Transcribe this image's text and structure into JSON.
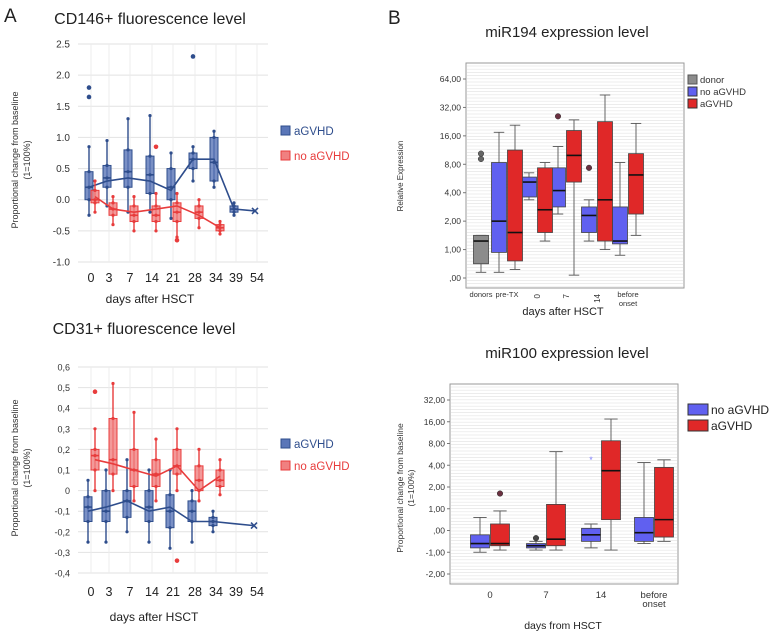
{
  "figure": {
    "panel_a_letter": "A",
    "panel_b_letter": "B",
    "colors": {
      "agvhd": "#2e4d8c",
      "agvhd_fill": "#5a76b8",
      "no_agvhd_red": "#e83c3c",
      "no_agvhd_red_fill": "#f08080",
      "donor": "#8c8c8c",
      "b_blue": "#6060f0",
      "b_red": "#e02828"
    }
  },
  "chart_data": [
    {
      "id": "cd146",
      "type": "box",
      "title": "CD146+ fluorescence level",
      "xlabel": "days after HSCT",
      "ylabel": "Proportional change from baseline (1=100%)",
      "ylabel_lines": [
        "Proportional change from baseline",
        "(1=100%)"
      ],
      "categories": [
        "0",
        "3",
        "7",
        "14",
        "21",
        "28",
        "34",
        "39",
        "54"
      ],
      "ylim": [
        -1.0,
        2.5
      ],
      "yticks": [
        "2.5",
        "2.0",
        "1.5",
        "1.0",
        "0.5",
        "0.0",
        "-0.5",
        "-1.0"
      ],
      "ytick_values": [
        2.5,
        2.0,
        1.5,
        1.0,
        0.5,
        0.0,
        -0.5,
        -1.0
      ],
      "legend": [
        "aGVHD",
        "no aGVHD"
      ],
      "series": [
        {
          "name": "aGVHD",
          "boxes": [
            {
              "cat": "0",
              "min": -0.25,
              "q1": 0.0,
              "median": 0.2,
              "q3": 0.45,
              "max": 0.85
            },
            {
              "cat": "3",
              "min": -0.1,
              "q1": 0.2,
              "median": 0.35,
              "q3": 0.55,
              "max": 0.95
            },
            {
              "cat": "7",
              "min": -0.2,
              "q1": 0.2,
              "median": 0.45,
              "q3": 0.8,
              "max": 1.3
            },
            {
              "cat": "14",
              "min": -0.2,
              "q1": 0.1,
              "median": 0.4,
              "q3": 0.7,
              "max": 1.35
            },
            {
              "cat": "21",
              "min": -0.3,
              "q1": 0.0,
              "median": 0.2,
              "q3": 0.5,
              "max": 0.75
            },
            {
              "cat": "28",
              "min": 0.3,
              "q1": 0.5,
              "median": 0.65,
              "q3": 0.75,
              "max": 0.85
            },
            {
              "cat": "34",
              "min": 0.2,
              "q1": 0.3,
              "median": 0.6,
              "q3": 1.0,
              "max": 1.1
            },
            {
              "cat": "39",
              "min": -0.25,
              "q1": -0.2,
              "median": -0.15,
              "q3": -0.1,
              "max": -0.05
            }
          ],
          "mean_line": [
            {
              "cat": "0",
              "v": 0.2
            },
            {
              "cat": "3",
              "v": 0.3
            },
            {
              "cat": "7",
              "v": 0.35
            },
            {
              "cat": "14",
              "v": 0.3
            },
            {
              "cat": "21",
              "v": 0.15
            },
            {
              "cat": "28",
              "v": 0.65
            },
            {
              "cat": "34",
              "v": 0.65
            },
            {
              "cat": "39",
              "v": -0.15
            },
            {
              "cat": "54",
              "v": -0.18
            }
          ],
          "outliers": [
            {
              "cat": "0",
              "v": 1.8
            },
            {
              "cat": "0",
              "v": 1.65
            },
            {
              "cat": "28",
              "v": 2.3
            }
          ]
        },
        {
          "name": "no aGVHD",
          "boxes": [
            {
              "cat": "0",
              "min": -0.2,
              "q1": -0.05,
              "median": 0.0,
              "q3": 0.15,
              "max": 0.3
            },
            {
              "cat": "3",
              "min": -0.4,
              "q1": -0.25,
              "median": -0.15,
              "q3": -0.05,
              "max": 0.05
            },
            {
              "cat": "7",
              "min": -0.5,
              "q1": -0.35,
              "median": -0.25,
              "q3": -0.1,
              "max": 0.05
            },
            {
              "cat": "14",
              "min": -0.5,
              "q1": -0.35,
              "median": -0.25,
              "q3": -0.1,
              "max": 0.1
            },
            {
              "cat": "21",
              "min": -0.6,
              "q1": -0.35,
              "median": -0.2,
              "q3": -0.05,
              "max": 0.1
            },
            {
              "cat": "28",
              "min": -0.45,
              "q1": -0.3,
              "median": -0.2,
              "q3": -0.1,
              "max": 0.0
            },
            {
              "cat": "34",
              "min": -0.55,
              "q1": -0.5,
              "median": -0.45,
              "q3": -0.4,
              "max": -0.35
            }
          ],
          "mean_line": [
            {
              "cat": "0",
              "v": 0.05
            },
            {
              "cat": "3",
              "v": -0.15
            },
            {
              "cat": "7",
              "v": -0.2
            },
            {
              "cat": "14",
              "v": -0.15
            },
            {
              "cat": "21",
              "v": -0.1
            },
            {
              "cat": "28",
              "v": -0.25
            },
            {
              "cat": "34",
              "v": -0.45
            }
          ],
          "outliers": [
            {
              "cat": "14",
              "v": 0.85
            },
            {
              "cat": "21",
              "v": -0.65
            }
          ]
        }
      ]
    },
    {
      "id": "cd31",
      "type": "box",
      "title": "CD31+ fluorescence level",
      "xlabel": "days after HSCT",
      "ylabel": "Proportional change from baseline (1=100%)",
      "ylabel_lines": [
        "Proportional change from baseline",
        "(1=100%)"
      ],
      "categories": [
        "0",
        "3",
        "7",
        "14",
        "21",
        "28",
        "34",
        "39",
        "54"
      ],
      "ylim": [
        -0.4,
        0.6
      ],
      "yticks": [
        "0,6",
        "0,5",
        "0,4",
        "0,3",
        "0,2",
        "0,1",
        "0",
        "-0,1",
        "-0,2",
        "-0,3",
        "-0,4"
      ],
      "ytick_values": [
        0.6,
        0.5,
        0.4,
        0.3,
        0.2,
        0.1,
        0.0,
        -0.1,
        -0.2,
        -0.3,
        -0.4
      ],
      "legend": [
        "aGVHD",
        "no aGVHD"
      ],
      "series": [
        {
          "name": "aGVHD",
          "boxes": [
            {
              "cat": "0",
              "min": -0.25,
              "q1": -0.15,
              "median": -0.08,
              "q3": -0.03,
              "max": 0.05
            },
            {
              "cat": "3",
              "min": -0.25,
              "q1": -0.15,
              "median": -0.1,
              "q3": 0.0,
              "max": 0.1
            },
            {
              "cat": "7",
              "min": -0.2,
              "q1": -0.13,
              "median": -0.05,
              "q3": 0.0,
              "max": 0.15
            },
            {
              "cat": "14",
              "min": -0.25,
              "q1": -0.15,
              "median": -0.08,
              "q3": 0.0,
              "max": 0.1
            },
            {
              "cat": "21",
              "min": -0.28,
              "q1": -0.18,
              "median": -0.1,
              "q3": -0.02,
              "max": 0.1
            },
            {
              "cat": "28",
              "min": -0.25,
              "q1": -0.15,
              "median": -0.1,
              "q3": -0.05,
              "max": 0.0
            },
            {
              "cat": "34",
              "min": -0.2,
              "q1": -0.17,
              "median": -0.15,
              "q3": -0.13,
              "max": -0.1
            }
          ],
          "mean_line": [
            {
              "cat": "0",
              "v": -0.1
            },
            {
              "cat": "3",
              "v": -0.08
            },
            {
              "cat": "7",
              "v": -0.05
            },
            {
              "cat": "14",
              "v": -0.1
            },
            {
              "cat": "21",
              "v": -0.08
            },
            {
              "cat": "28",
              "v": -0.15
            },
            {
              "cat": "34",
              "v": -0.15
            },
            {
              "cat": "39",
              "v": -0.16
            },
            {
              "cat": "54",
              "v": -0.17
            }
          ],
          "outliers": []
        },
        {
          "name": "no aGVHD",
          "boxes": [
            {
              "cat": "0",
              "min": 0.0,
              "q1": 0.1,
              "median": 0.17,
              "q3": 0.2,
              "max": 0.3
            },
            {
              "cat": "3",
              "min": 0.0,
              "q1": 0.08,
              "median": 0.15,
              "q3": 0.35,
              "max": 0.52
            },
            {
              "cat": "7",
              "min": -0.05,
              "q1": 0.02,
              "median": 0.1,
              "q3": 0.2,
              "max": 0.38
            },
            {
              "cat": "14",
              "min": -0.05,
              "q1": 0.02,
              "median": 0.08,
              "q3": 0.15,
              "max": 0.25
            },
            {
              "cat": "21",
              "min": 0.0,
              "q1": 0.08,
              "median": 0.12,
              "q3": 0.2,
              "max": 0.3
            },
            {
              "cat": "28",
              "min": -0.05,
              "q1": 0.0,
              "median": 0.05,
              "q3": 0.12,
              "max": 0.2
            },
            {
              "cat": "34",
              "min": -0.02,
              "q1": 0.02,
              "median": 0.05,
              "q3": 0.1,
              "max": 0.15
            }
          ],
          "mean_line": [
            {
              "cat": "0",
              "v": 0.15
            },
            {
              "cat": "3",
              "v": 0.13
            },
            {
              "cat": "7",
              "v": 0.1
            },
            {
              "cat": "14",
              "v": 0.07
            },
            {
              "cat": "21",
              "v": 0.12
            },
            {
              "cat": "28",
              "v": 0.0
            },
            {
              "cat": "34",
              "v": 0.07
            }
          ],
          "outliers": [
            {
              "cat": "0",
              "v": 0.48
            },
            {
              "cat": "21",
              "v": -0.34
            }
          ]
        }
      ]
    },
    {
      "id": "mir194",
      "type": "box",
      "title": "miR194 expression level",
      "xlabel": "days after HSCT",
      "ylabel": "Relative Expression",
      "categories": [
        "donors",
        "pre-TX",
        "0",
        "7",
        "14",
        "before onset"
      ],
      "category_lines": [
        [
          "donors"
        ],
        [
          "pre-TX"
        ],
        [
          "0"
        ],
        [
          "7"
        ],
        [
          "14"
        ],
        [
          "before",
          "onset"
        ]
      ],
      "yticks": [
        "64,00",
        "32,00",
        "16,00",
        "8,00",
        "4,00",
        "2,00",
        "1,00",
        ",00"
      ],
      "ytick_values": [
        64,
        32,
        16,
        8,
        4,
        2,
        1,
        0
      ],
      "legend": [
        "donor",
        "no aGVHD",
        "aGVHD"
      ],
      "series": [
        {
          "name": "donor",
          "boxes": [
            {
              "cat": "donors",
              "min": 0.2,
              "q1": 0.5,
              "median": 1.3,
              "q3": 1.5,
              "max": 1.5
            }
          ],
          "outliers": [
            {
              "cat": "donors",
              "v": 11
            },
            {
              "cat": "donors",
              "v": 9.5
            }
          ]
        },
        {
          "name": "no aGVHD",
          "boxes": [
            {
              "cat": "pre-TX",
              "min": 0.2,
              "q1": 0.9,
              "median": 2.0,
              "q3": 8.5,
              "max": 18
            },
            {
              "cat": "0",
              "min": 3.5,
              "q1": 3.7,
              "median": 5.5,
              "q3": 6.2,
              "max": 6.8
            },
            {
              "cat": "7",
              "min": 2.5,
              "q1": 3.0,
              "median": 4.3,
              "q3": 7.5,
              "max": 13
            },
            {
              "cat": "14",
              "min": 1.3,
              "q1": 1.6,
              "median": 2.4,
              "q3": 3.0,
              "max": 3.5
            },
            {
              "cat": "before onset",
              "min": 0.8,
              "q1": 1.2,
              "median": 1.3,
              "q3": 3.0,
              "max": 8.5
            }
          ],
          "outliers": [
            {
              "cat": "7",
              "v": 27
            },
            {
              "cat": "14",
              "v": 7.5
            }
          ]
        },
        {
          "name": "aGVHD",
          "boxes": [
            {
              "cat": "pre-TX",
              "min": 0.3,
              "q1": 0.6,
              "median": 1.6,
              "q3": 12,
              "max": 22
            },
            {
              "cat": "0",
              "min": 1.3,
              "q1": 1.6,
              "median": 2.8,
              "q3": 7.5,
              "max": 8.5
            },
            {
              "cat": "7",
              "min": 0.1,
              "q1": 5.5,
              "median": 10.5,
              "q3": 19,
              "max": 25
            },
            {
              "cat": "14",
              "min": 1.0,
              "q1": 1.3,
              "median": 3.5,
              "q3": 24,
              "max": 46
            },
            {
              "cat": "before onset",
              "min": 1.5,
              "q1": 2.5,
              "median": 6.5,
              "q3": 11,
              "max": 23
            }
          ],
          "outliers": []
        }
      ]
    },
    {
      "id": "mir100",
      "type": "box",
      "title": "miR100 expression level",
      "xlabel": "days from HSCT",
      "ylabel": "Proportional change from baseline (1=100%)",
      "ylabel_lines": [
        "Proportional change from baseline",
        "(1=100%)"
      ],
      "categories": [
        "0",
        "7",
        "14",
        "before onset"
      ],
      "category_lines": [
        [
          "0"
        ],
        [
          "7"
        ],
        [
          "14"
        ],
        [
          "before",
          "onset"
        ]
      ],
      "yticks": [
        "32,00",
        "16,00",
        "8,00",
        "4,00",
        "2,00",
        "1,00",
        ",00",
        "-1,00",
        "-2,00"
      ],
      "ytick_values": [
        32,
        16,
        8,
        4,
        2,
        1,
        0,
        -1,
        -2
      ],
      "legend": [
        "no aGVHD",
        "aGVHD"
      ],
      "series": [
        {
          "name": "no aGVHD",
          "boxes": [
            {
              "cat": "0",
              "min": -1.0,
              "q1": -0.8,
              "median": -0.6,
              "q3": -0.2,
              "max": 0.6
            },
            {
              "cat": "7",
              "min": -0.9,
              "q1": -0.8,
              "median": -0.7,
              "q3": -0.6,
              "max": -0.5
            },
            {
              "cat": "14",
              "min": -0.8,
              "q1": -0.5,
              "median": -0.2,
              "q3": 0.1,
              "max": 0.3
            },
            {
              "cat": "before onset",
              "min": -0.6,
              "q1": -0.5,
              "median": -0.1,
              "q3": 0.6,
              "max": 4.5
            }
          ],
          "outliers": [
            {
              "cat": "7",
              "v": -0.35
            },
            {
              "cat": "14",
              "v": 5.0
            }
          ]
        },
        {
          "name": "aGVHD",
          "boxes": [
            {
              "cat": "0",
              "min": -0.9,
              "q1": -0.7,
              "median": -0.6,
              "q3": 0.3,
              "max": 0.9
            },
            {
              "cat": "7",
              "min": -0.9,
              "q1": -0.7,
              "median": -0.4,
              "q3": 1.2,
              "max": 6.5
            },
            {
              "cat": "14",
              "min": -0.9,
              "q1": 0.5,
              "median": 3.5,
              "q3": 9.0,
              "max": 18
            },
            {
              "cat": "before onset",
              "min": -0.5,
              "q1": -0.3,
              "median": 0.5,
              "q3": 3.8,
              "max": 5.0
            }
          ],
          "outliers": [
            {
              "cat": "0",
              "v": 1.7
            }
          ]
        }
      ]
    }
  ]
}
